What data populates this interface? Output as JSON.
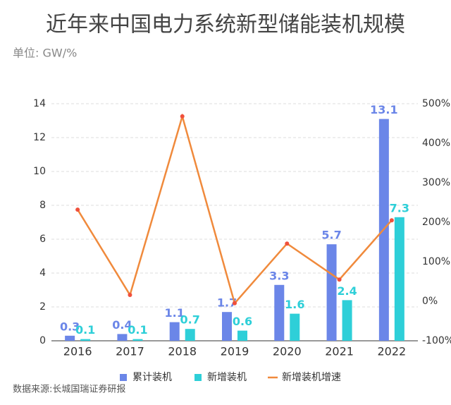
{
  "chart_data": {
    "type": "bar_line",
    "title": "近年来中国电力系统新型储能装机规模",
    "subtitle": "单位: GW/%",
    "source": "数据来源:长城国瑞证券研报",
    "categories": [
      "2016",
      "2017",
      "2018",
      "2019",
      "2020",
      "2021",
      "2022"
    ],
    "series": [
      {
        "name": "累计装机",
        "type": "bar",
        "color": "#6b86e8",
        "values": [
          0.3,
          0.4,
          1.1,
          1.7,
          3.3,
          5.7,
          13.1
        ]
      },
      {
        "name": "新增装机",
        "type": "bar",
        "color": "#2ecfd8",
        "values": [
          0.1,
          0.1,
          0.7,
          0.6,
          1.6,
          2.4,
          7.3
        ]
      },
      {
        "name": "新增装机增速",
        "type": "line",
        "axis": "y2",
        "color": "#f08a3c",
        "values": [
          232,
          16,
          468,
          -5,
          146,
          55,
          205
        ]
      }
    ],
    "ylim": [
      0,
      14
    ],
    "yticks": [
      0,
      2,
      4,
      6,
      8,
      10,
      12,
      14
    ],
    "y2lim": [
      -100,
      500
    ],
    "y2ticks": [
      {
        "value": -100,
        "label": "-100%"
      },
      {
        "value": 0,
        "label": "0%"
      },
      {
        "value": 100,
        "label": "100%"
      },
      {
        "value": 200,
        "label": "200%"
      },
      {
        "value": 300,
        "label": "300%"
      },
      {
        "value": 400,
        "label": "400%"
      },
      {
        "value": 500,
        "label": "500%"
      }
    ],
    "grid": true
  }
}
